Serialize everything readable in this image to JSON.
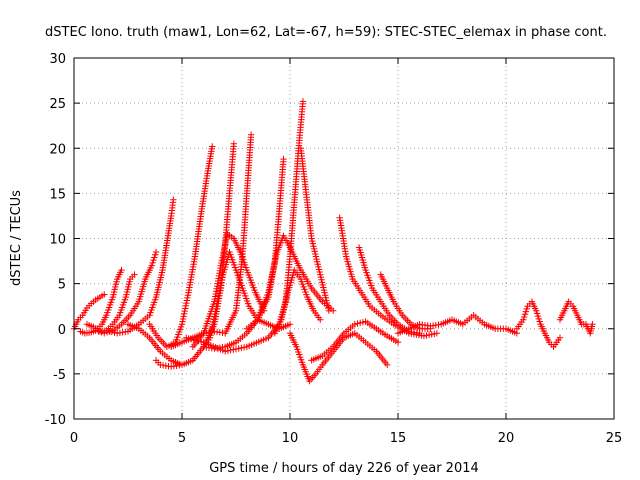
{
  "chart_data": {
    "type": "scatter",
    "title": "dSTEC Iono. truth (maw1, Lon=62, Lat=-67, h=59): STEC-STEC_elemax in phase cont.",
    "xlabel": "GPS time / hours of day 226 of year 2014",
    "ylabel": "dSTEC  / TECUs",
    "xlim": [
      0,
      25
    ],
    "ylim": [
      -10,
      30
    ],
    "xticks": [
      0,
      5,
      10,
      15,
      20,
      25
    ],
    "yticks": [
      -10,
      -5,
      0,
      5,
      10,
      15,
      20,
      25,
      30
    ],
    "grid": true,
    "marker": "plus",
    "color": "#ff0000",
    "series": [
      {
        "x": [
          0.0,
          0.2,
          0.4,
          0.6,
          0.8,
          1.0,
          1.2,
          1.4
        ],
        "y": [
          0.0,
          1.0,
          1.5,
          2.3,
          2.8,
          3.2,
          3.5,
          3.8
        ]
      },
      {
        "x": [
          0.3,
          0.5,
          0.8,
          1.0,
          1.3,
          1.5,
          1.8,
          2.0,
          2.2
        ],
        "y": [
          -0.3,
          -0.5,
          -0.4,
          -0.2,
          0.5,
          1.5,
          3.5,
          5.5,
          6.5
        ]
      },
      {
        "x": [
          0.6,
          0.9,
          1.2,
          1.5,
          1.8,
          2.1,
          2.4,
          2.6,
          2.8
        ],
        "y": [
          0.5,
          0.2,
          -0.3,
          -0.2,
          0.5,
          1.5,
          3.5,
          5.5,
          6.0
        ]
      },
      {
        "x": [
          1.0,
          1.4,
          1.8,
          2.2,
          2.6,
          3.0,
          3.3,
          3.6,
          3.8
        ],
        "y": [
          -0.2,
          -0.5,
          -0.2,
          0.5,
          1.5,
          3.0,
          5.5,
          7.0,
          8.5
        ]
      },
      {
        "x": [
          1.5,
          2.0,
          2.5,
          3.0,
          3.5,
          3.8,
          4.1,
          4.3,
          4.5,
          4.6
        ],
        "y": [
          -0.2,
          -0.5,
          -0.3,
          0.5,
          1.5,
          3.5,
          6.5,
          9.5,
          12.5,
          14.3
        ]
      },
      {
        "x": [
          2.5,
          3.0,
          3.5,
          4.0,
          4.5,
          4.8,
          5.0
        ],
        "y": [
          0.5,
          0.0,
          -1.0,
          -2.5,
          -3.5,
          -3.8,
          -4.0
        ]
      },
      {
        "x": [
          3.5,
          3.9,
          4.3,
          4.7,
          5.0,
          5.3,
          5.6,
          5.9,
          6.2,
          6.4
        ],
        "y": [
          0.5,
          -1.0,
          -2.0,
          -1.5,
          0.5,
          4.0,
          8.0,
          13.0,
          17.5,
          20.2
        ]
      },
      {
        "x": [
          3.8,
          4.0,
          4.5,
          5.0,
          5.5,
          6.0,
          6.5,
          6.8,
          7.0,
          7.2,
          7.4
        ],
        "y": [
          -3.5,
          -4.0,
          -4.2,
          -4.0,
          -3.5,
          -2.0,
          0.5,
          4.5,
          9.5,
          15.0,
          20.5
        ]
      },
      {
        "x": [
          4.5,
          5.0,
          5.5,
          6.0,
          6.5,
          7.0,
          7.5,
          7.8,
          8.0,
          8.2
        ],
        "y": [
          -2.0,
          -1.5,
          -1.0,
          -0.5,
          -0.3,
          -0.5,
          2.0,
          8.0,
          15.0,
          21.5
        ]
      },
      {
        "x": [
          5.5,
          6.0,
          6.5,
          6.8,
          7.1,
          7.4,
          7.7,
          8.0,
          8.4,
          8.8
        ],
        "y": [
          -2.0,
          -0.5,
          3.0,
          7.0,
          10.5,
          10.0,
          8.5,
          6.5,
          4.0,
          2.0
        ]
      },
      {
        "x": [
          6.0,
          6.5,
          7.0,
          7.5,
          8.0,
          8.5,
          9.0,
          9.3,
          9.5,
          9.7
        ],
        "y": [
          -2.0,
          -2.2,
          -2.0,
          -1.5,
          -0.5,
          1.0,
          3.5,
          7.5,
          13.0,
          18.8
        ]
      },
      {
        "x": [
          6.0,
          6.3,
          6.6,
          6.9,
          7.2,
          7.5,
          7.8,
          8.1,
          8.5,
          9.0,
          9.5,
          10.0
        ],
        "y": [
          -2.0,
          -1.0,
          2.5,
          6.0,
          8.5,
          6.5,
          4.5,
          2.5,
          1.0,
          0.5,
          0.0,
          0.5
        ]
      },
      {
        "x": [
          5.2,
          6.0,
          7.0,
          8.0,
          9.0,
          9.5,
          9.8,
          10.0,
          10.2,
          10.4,
          10.6
        ],
        "y": [
          -1.0,
          -1.5,
          -2.5,
          -2.0,
          -1.0,
          0.5,
          3.0,
          8.0,
          14.0,
          20.0,
          25.2
        ]
      },
      {
        "x": [
          8.0,
          8.5,
          9.0,
          9.4,
          9.7,
          10.0,
          10.5,
          11.0,
          11.5,
          12.0
        ],
        "y": [
          0.0,
          1.0,
          4.0,
          8.5,
          10.3,
          9.0,
          6.5,
          4.5,
          3.0,
          2.0
        ]
      },
      {
        "x": [
          9.3,
          9.6,
          9.9,
          10.2,
          10.5,
          10.8,
          11.1,
          11.4
        ],
        "y": [
          -0.5,
          1.0,
          4.0,
          6.5,
          5.5,
          3.5,
          2.0,
          1.0
        ]
      },
      {
        "x": [
          10.5,
          10.8,
          11.0,
          11.2,
          11.4,
          11.6,
          11.8
        ],
        "y": [
          20.0,
          14.0,
          10.0,
          8.0,
          6.0,
          4.0,
          2.0
        ]
      },
      {
        "x": [
          10.0,
          10.3,
          10.6,
          10.9,
          11.2,
          11.5,
          12.0,
          12.5,
          13.0,
          13.5,
          14.0,
          14.5
        ],
        "y": [
          -0.5,
          -2.0,
          -4.0,
          -5.8,
          -5.0,
          -4.0,
          -2.5,
          -1.0,
          -0.5,
          -1.5,
          -2.5,
          -4.0
        ]
      },
      {
        "x": [
          11.0,
          11.5,
          12.0,
          12.5,
          13.0,
          13.5,
          14.0,
          14.5,
          15.0
        ],
        "y": [
          -3.5,
          -3.0,
          -2.0,
          -0.5,
          0.5,
          0.8,
          0.0,
          -0.8,
          -1.5
        ]
      },
      {
        "x": [
          12.3,
          12.6,
          12.9,
          13.3,
          13.7,
          14.2,
          14.8,
          15.5,
          16.2,
          16.8
        ],
        "y": [
          12.3,
          8.0,
          5.5,
          4.0,
          2.5,
          1.5,
          0.5,
          -0.5,
          -0.8,
          -0.5
        ]
      },
      {
        "x": [
          13.2,
          13.5,
          13.8,
          14.2,
          14.6,
          15.0,
          15.5,
          16.0
        ],
        "y": [
          9.0,
          6.5,
          4.5,
          3.0,
          1.5,
          0.5,
          -0.3,
          -0.5
        ]
      },
      {
        "x": [
          14.2,
          14.5,
          14.8,
          15.2,
          15.6,
          16.0,
          16.5
        ],
        "y": [
          6.0,
          4.5,
          3.0,
          1.5,
          0.5,
          0.0,
          0.0
        ]
      },
      {
        "x": [
          15.0,
          15.5,
          16.0,
          16.5,
          17.0,
          17.5,
          18.0,
          18.5,
          19.0,
          19.5,
          20.0,
          20.5
        ],
        "y": [
          -0.5,
          0.0,
          0.5,
          0.3,
          0.5,
          1.0,
          0.5,
          1.5,
          0.5,
          0.0,
          0.0,
          -0.5
        ]
      },
      {
        "x": [
          20.5,
          20.8,
          21.0,
          21.2,
          21.4,
          21.6,
          21.8,
          22.0,
          22.2,
          22.5
        ],
        "y": [
          0.0,
          1.0,
          2.5,
          3.0,
          2.0,
          0.5,
          -0.5,
          -1.5,
          -2.0,
          -1.0
        ]
      },
      {
        "x": [
          22.5,
          22.7,
          22.9,
          23.1,
          23.3,
          23.5,
          23.7,
          23.9,
          24.0
        ],
        "y": [
          1.0,
          2.0,
          3.0,
          2.5,
          1.5,
          0.5,
          0.5,
          -0.5,
          0.5
        ]
      }
    ]
  }
}
